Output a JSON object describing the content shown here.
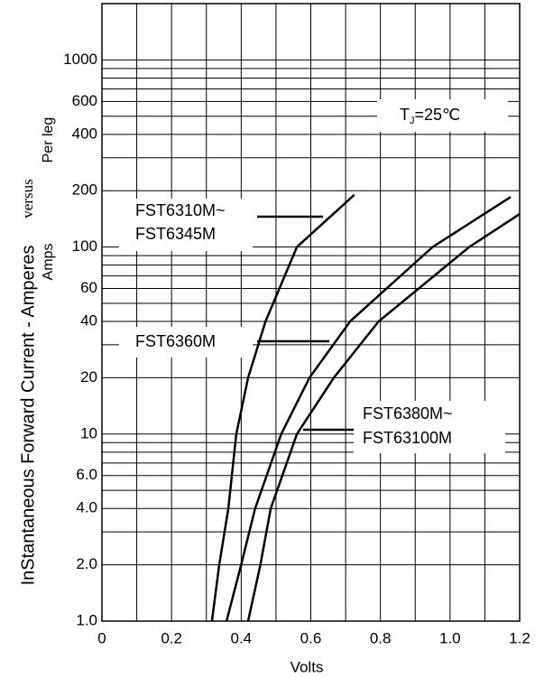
{
  "chart_data": {
    "type": "line",
    "xlabel": "Volts",
    "ylabel": [
      "InStantaneous Forward Current - Amperes",
      "versus",
      "Per leg",
      "Amps"
    ],
    "annotation": {
      "parts": [
        "T",
        "J",
        "=25℃"
      ]
    },
    "log_y": true,
    "grid": true,
    "xlim": [
      0,
      1.2
    ],
    "ylim": [
      1,
      2000
    ],
    "xticks": [
      0,
      0.2,
      0.4,
      0.6,
      0.8,
      {
        "value": 1,
        "label": "1.0"
      },
      1.2
    ],
    "minor_xticks": [
      0.1,
      0.3,
      0.5,
      0.7,
      0.9,
      1.1
    ],
    "yticks": [
      {
        "value": 1,
        "label": "1.0"
      },
      {
        "value": 2,
        "label": "2.0"
      },
      {
        "value": 4,
        "label": "4.0"
      },
      {
        "value": 6,
        "label": "6.0"
      },
      10,
      20,
      40,
      60,
      100,
      200,
      400,
      600,
      1000
    ],
    "minor_yticks": [
      3,
      5,
      7,
      8,
      9,
      30,
      50,
      70,
      80,
      90,
      300,
      500,
      700,
      800,
      900
    ],
    "series": [
      {
        "name": [
          "FST6310M~",
          "FST6345M"
        ],
        "color": "#000000",
        "x": [
          0.316,
          0.337,
          0.363,
          0.386,
          0.42,
          0.47,
          0.56,
          0.725
        ],
        "values": [
          1,
          2,
          4,
          10,
          20,
          40,
          100,
          190
        ]
      },
      {
        "name": [
          "FST6360M"
        ],
        "color": "#000000",
        "x": [
          0.358,
          0.4,
          0.44,
          0.515,
          0.596,
          0.713,
          0.95,
          1.174
        ],
        "values": [
          1,
          2,
          4,
          10,
          20,
          40,
          100,
          185
        ]
      },
      {
        "name": [
          "FST6380M~",
          "FST63100M"
        ],
        "color": "#000000",
        "x": [
          0.42,
          0.455,
          0.485,
          0.56,
          0.666,
          0.795,
          1.055,
          1.2
        ],
        "values": [
          1,
          2,
          4,
          10,
          20,
          40,
          100,
          150
        ]
      }
    ]
  }
}
